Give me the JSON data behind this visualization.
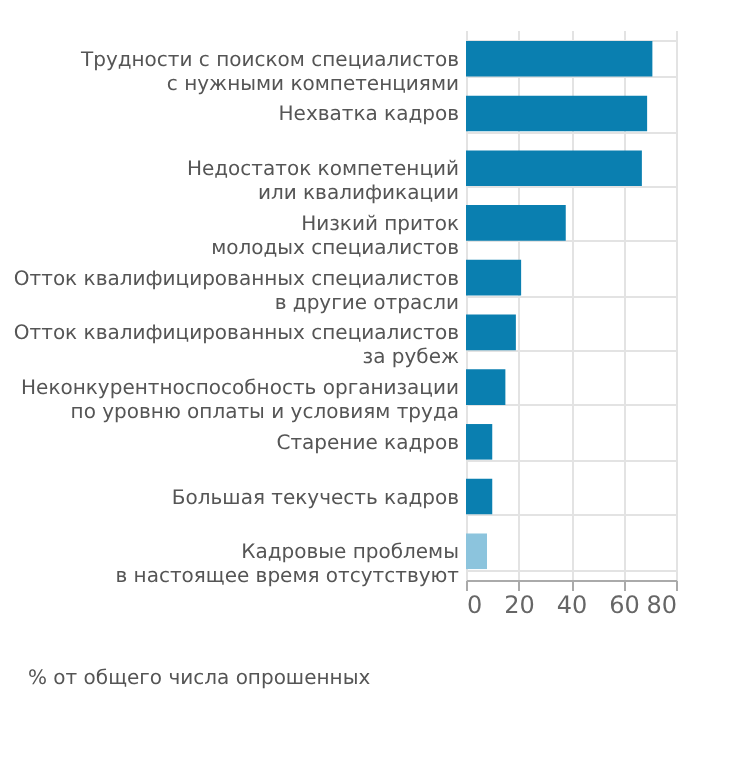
{
  "chart_data": {
    "type": "bar",
    "orientation": "horizontal",
    "categories": [
      "Трудности с поиском специалистов\nс нужными компетенциями",
      "Нехватка кадров",
      "Недостаток компетенций\nили квалификации",
      "Низкий приток\nмолодых специалистов",
      "Отток квалифицированных специалистов\nв другие отрасли",
      "Отток квалифицированных специалистов\nза рубеж",
      "Неконкурентноспособность организации\nпо уровню оплаты и условиям труда",
      "Старение кадров",
      "Большая текучесть кадров",
      "Кадровые проблемы\nв настоящее время отсутствуют"
    ],
    "values": [
      71,
      69,
      67,
      38,
      21,
      19,
      15,
      10,
      10,
      8
    ],
    "colors": [
      "#0a7fb0",
      "#0a7fb0",
      "#0a7fb0",
      "#0a7fb0",
      "#0a7fb0",
      "#0a7fb0",
      "#0a7fb0",
      "#0a7fb0",
      "#0a7fb0",
      "#8cc4dd"
    ],
    "xlim": [
      0,
      80
    ],
    "xticks": [
      0,
      20,
      40,
      60,
      80
    ],
    "grid": true,
    "annotations": [
      "% от общего числа опрошенных"
    ]
  }
}
